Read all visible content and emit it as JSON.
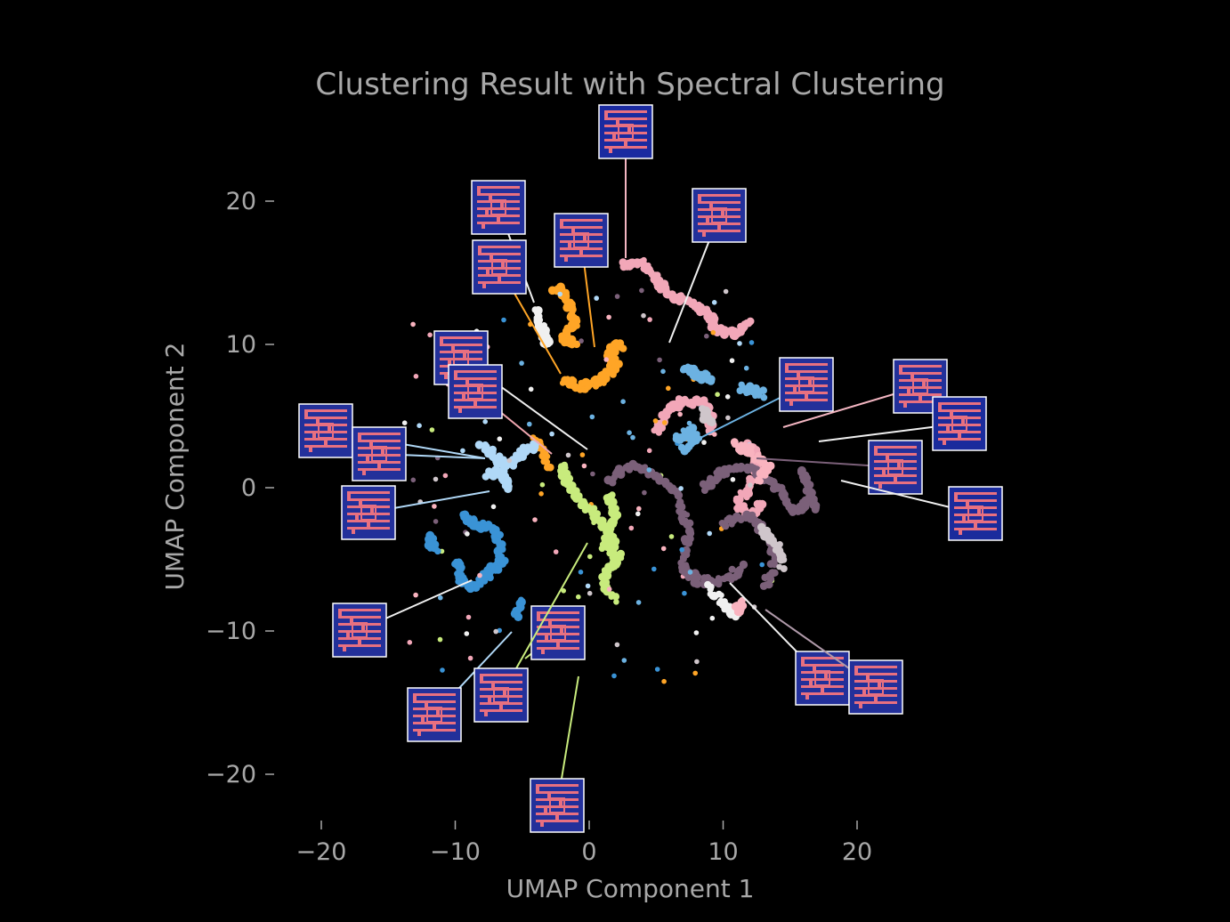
{
  "chart_data": {
    "type": "scatter",
    "title": "Clustering Result with Spectral Clustering",
    "xlabel": "UMAP Component 1",
    "ylabel": "UMAP Component 2",
    "xlim": [
      -22,
      33
    ],
    "ylim": [
      -24,
      27
    ],
    "xticks": [
      -20,
      -10,
      0,
      10,
      20
    ],
    "yticks": [
      -20,
      -10,
      0,
      10,
      20
    ],
    "xtick_labels": [
      "−20",
      "−10",
      "0",
      "10",
      "20"
    ],
    "ytick_labels": [
      "−20",
      "−10",
      "0",
      "10",
      "20"
    ],
    "grid": false,
    "background": "#000000",
    "clusters": [
      {
        "color": "#f2a7b8",
        "trails": [
          [
            [
              2.5,
              15.5
            ],
            [
              4,
              15.8
            ],
            [
              5,
              14.5
            ],
            [
              6,
              13.5
            ],
            [
              7.5,
              13
            ],
            [
              9,
              12
            ],
            [
              9.5,
              11
            ],
            [
              11,
              10.8
            ],
            [
              12,
              11.5
            ]
          ],
          [
            [
              5,
              4
            ],
            [
              6,
              5.5
            ],
            [
              7,
              6
            ],
            [
              8.5,
              6
            ],
            [
              9,
              5
            ],
            [
              9,
              4
            ]
          ],
          [
            [
              12,
              3
            ],
            [
              12.5,
              2
            ],
            [
              12,
              0
            ],
            [
              11,
              -1
            ],
            [
              12,
              -2
            ],
            [
              13,
              -1
            ]
          ]
        ]
      },
      {
        "color": "#ffa526",
        "trails": [
          [
            [
              -2.5,
              14
            ],
            [
              -1.5,
              13
            ],
            [
              -1,
              11.5
            ],
            [
              -2,
              10.5
            ],
            [
              -1,
              10
            ]
          ],
          [
            [
              -2,
              7.5
            ],
            [
              -0.5,
              7
            ],
            [
              1,
              7.5
            ],
            [
              2,
              8.5
            ],
            [
              1.5,
              9.5
            ],
            [
              2.5,
              10
            ]
          ],
          [
            [
              -3,
              1.5
            ],
            [
              -4,
              3.5
            ]
          ]
        ]
      },
      {
        "color": "#c8eb7d",
        "trails": [
          [
            [
              -2,
              1.5
            ],
            [
              -1.5,
              0
            ],
            [
              -0.5,
              -1
            ],
            [
              0.5,
              -2
            ],
            [
              1.5,
              -3
            ],
            [
              2,
              -5
            ],
            [
              1,
              -6.5
            ],
            [
              2,
              -8
            ]
          ],
          [
            [
              1.5,
              -0.5
            ],
            [
              2,
              -2
            ],
            [
              1,
              -4
            ],
            [
              2.5,
              -5
            ]
          ]
        ]
      },
      {
        "color": "#7b6079",
        "trails": [
          [
            [
              1.5,
              0.5
            ],
            [
              3,
              1.5
            ],
            [
              5,
              1
            ],
            [
              6.5,
              -0.5
            ],
            [
              7.5,
              -3
            ],
            [
              7,
              -5.5
            ],
            [
              8,
              -6.5
            ],
            [
              10,
              -6.5
            ],
            [
              11.5,
              -5.5
            ]
          ],
          [
            [
              8.5,
              0
            ],
            [
              10,
              1
            ],
            [
              12,
              1.5
            ],
            [
              14,
              0
            ],
            [
              15,
              -1.5
            ],
            [
              16,
              -1.5
            ],
            [
              16.5,
              -0.5
            ]
          ],
          [
            [
              10,
              -2.5
            ],
            [
              12,
              -2
            ],
            [
              13.5,
              -3.5
            ],
            [
              14,
              -5
            ],
            [
              13,
              -7
            ]
          ],
          [
            [
              16,
              1
            ],
            [
              16.5,
              -0.5
            ],
            [
              17,
              -1.5
            ]
          ]
        ]
      },
      {
        "color": "#3a93d6",
        "trails": [
          [
            [
              -9.5,
              -2
            ],
            [
              -8.5,
              -2.5
            ],
            [
              -7,
              -3
            ],
            [
              -6.5,
              -5
            ],
            [
              -7.5,
              -6
            ],
            [
              -8.5,
              -7
            ],
            [
              -9.5,
              -6.5
            ],
            [
              -10,
              -5
            ]
          ],
          [
            [
              -12,
              -3.5
            ],
            [
              -11.5,
              -4.5
            ]
          ],
          [
            [
              -5,
              -8
            ],
            [
              -5.5,
              -9
            ]
          ]
        ]
      },
      {
        "color": "#b0d8f7",
        "trails": [
          [
            [
              -8,
              3
            ],
            [
              -7,
              2
            ],
            [
              -6,
              1.5
            ],
            [
              -5,
              2.5
            ],
            [
              -4,
              3
            ]
          ],
          [
            [
              -7.5,
              1
            ],
            [
              -6.5,
              1
            ],
            [
              -6,
              0
            ]
          ]
        ]
      },
      {
        "color": "#6cb2e2",
        "trails": [
          [
            [
              6.5,
              3.5
            ],
            [
              7.5,
              4
            ],
            [
              8,
              3.5
            ],
            [
              7,
              2.5
            ]
          ],
          [
            [
              7,
              8.5
            ],
            [
              8,
              8
            ],
            [
              9,
              7.5
            ]
          ],
          [
            [
              11.5,
              7
            ],
            [
              13,
              6.5
            ]
          ]
        ]
      },
      {
        "color": "#f0f0f0",
        "trails": [
          [
            [
              -4,
              12.5
            ],
            [
              -3.5,
              11
            ],
            [
              -3,
              10
            ]
          ],
          [
            [
              9,
              -7
            ],
            [
              10.5,
              -8.5
            ],
            [
              11,
              -9
            ]
          ]
        ]
      },
      {
        "color": "#f9b3bf",
        "trails": [
          [
            [
              11,
              3
            ],
            [
              12,
              2.5
            ],
            [
              13.5,
              1.5
            ],
            [
              12.5,
              0.5
            ]
          ],
          [
            [
              11,
              -8.5
            ],
            [
              11.5,
              -8
            ]
          ]
        ]
      },
      {
        "color": "#cfc6cb",
        "trails": [
          [
            [
              13,
              -3
            ],
            [
              14,
              -4
            ],
            [
              14.5,
              -5.5
            ]
          ],
          [
            [
              8.5,
              5.5
            ],
            [
              9,
              4.5
            ]
          ]
        ]
      }
    ]
  }
}
